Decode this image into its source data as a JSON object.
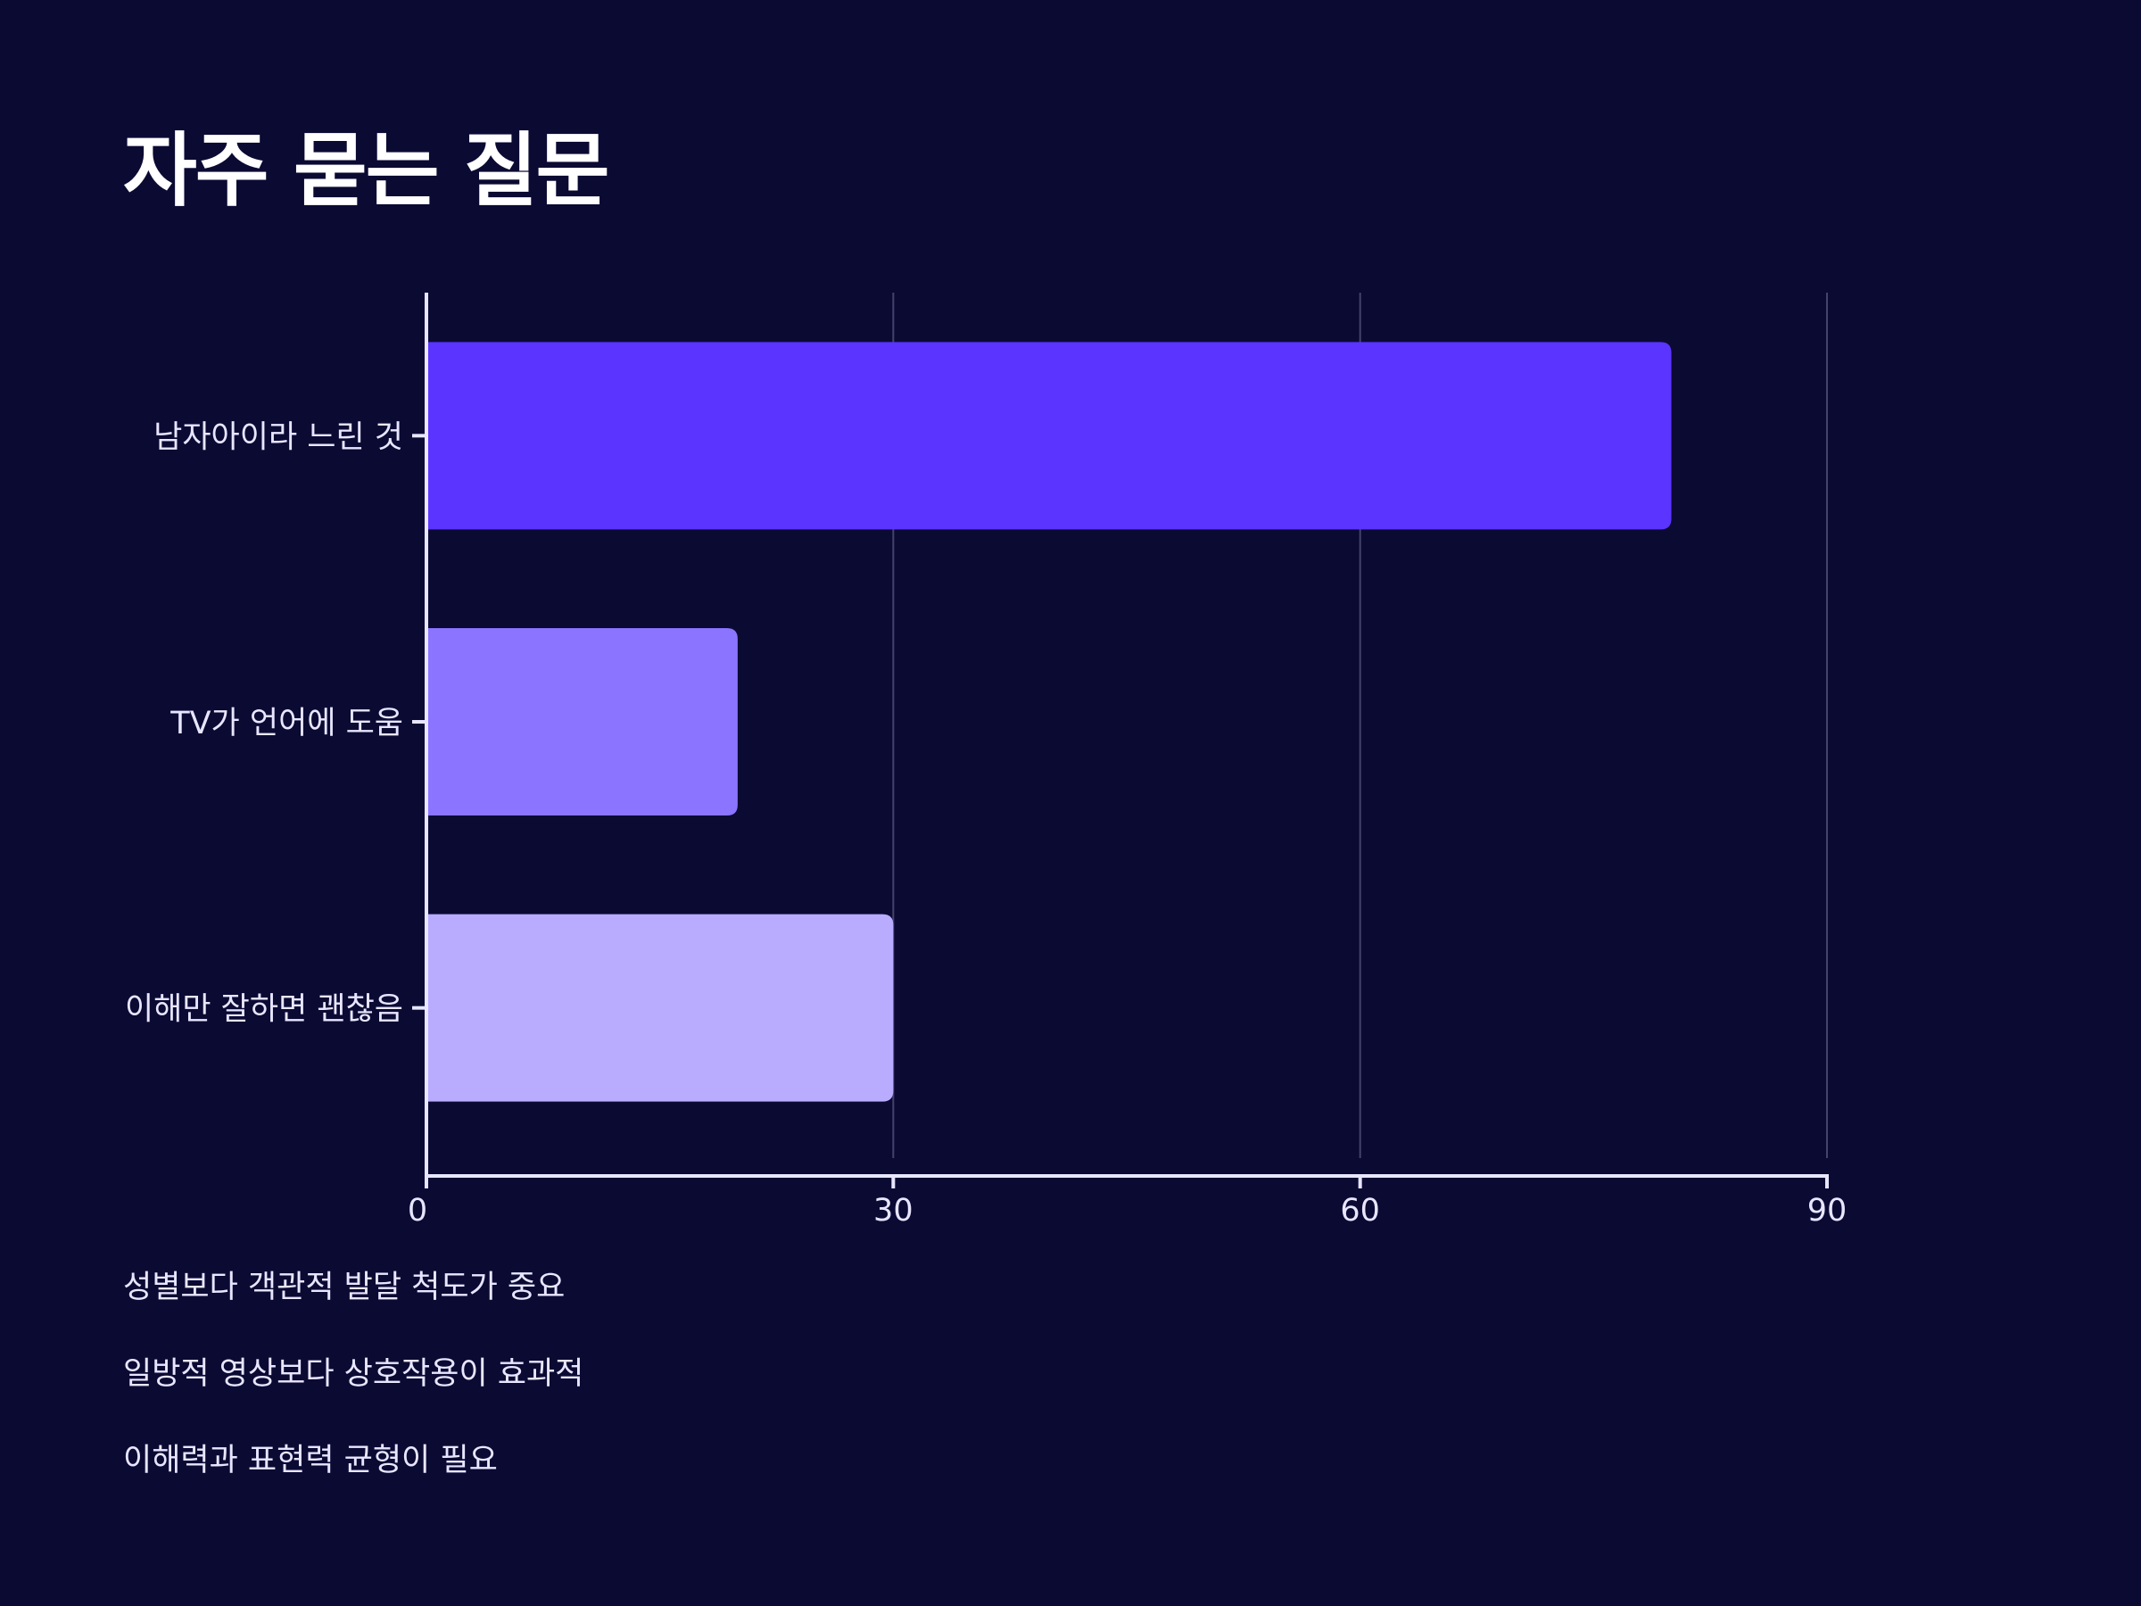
{
  "title": "자주 묻는 질문",
  "chart_data": {
    "type": "bar",
    "orientation": "horizontal",
    "categories": [
      "남자아이라 느린 것",
      "TV가 언어에 도움",
      "이해만 잘하면 괜찮음"
    ],
    "values": [
      80,
      20,
      30
    ],
    "colors": [
      "#5b34ff",
      "#8b74ff",
      "#b9acff"
    ],
    "xlim": [
      0,
      90
    ],
    "xticks": [
      0,
      30,
      60,
      90
    ],
    "grid": true
  },
  "notes": [
    "성별보다 객관적 발달 척도가 중요",
    "일방적 영상보다 상호작용이 효과적",
    "이해력과 표현력 균형이 필요"
  ]
}
